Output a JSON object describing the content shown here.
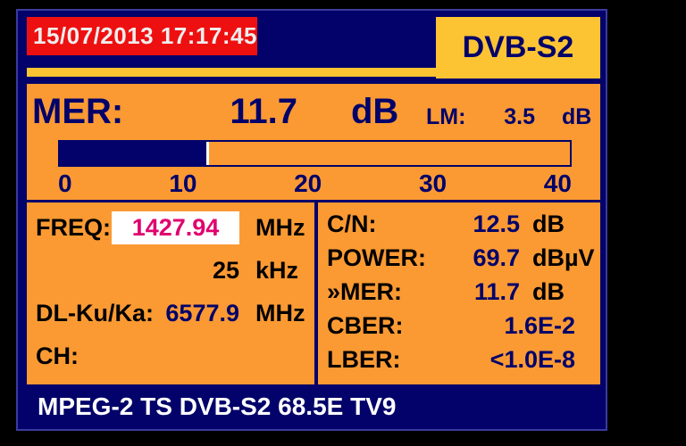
{
  "colors": {
    "navy": "#02026A",
    "frame": "#3A3A9E",
    "orange": "#FB9A33",
    "yellow": "#FCC433",
    "red": "#EE1010",
    "magenta": "#E0006E",
    "white": "#FFFFFF",
    "offwhite": "#EDEDED"
  },
  "header": {
    "datetime": "15/07/2013 17:17:45",
    "standard": "DVB-S2"
  },
  "mer": {
    "label": "MER:",
    "value": "11.7",
    "unit": "dB",
    "lm_label": "LM:",
    "lm_value": "3.5",
    "lm_unit": "dB"
  },
  "gauge": {
    "min": 0,
    "max": 40,
    "value": 11.7,
    "ticks": [
      "0",
      "10",
      "20",
      "30",
      "40"
    ]
  },
  "tuning": {
    "rows": [
      {
        "label": "FREQ:",
        "value": "1427.94",
        "unit": "MHz",
        "highlight": true
      },
      {
        "label": "",
        "value": "25",
        "unit": "kHz"
      },
      {
        "label": "DL-Ku/Ka:",
        "value": "6577.9",
        "unit": "MHz",
        "value_color": "navy"
      },
      {
        "label": "CH:",
        "value": "",
        "unit": ""
      }
    ]
  },
  "measurements": {
    "rows": [
      {
        "label": "C/N:",
        "value": "12.5",
        "unit": "dB"
      },
      {
        "label": "POWER:",
        "value": "69.7",
        "unit": "dBµV"
      },
      {
        "label": "»MER:",
        "value": "11.7",
        "unit": "dB"
      },
      {
        "label": "CBER:",
        "value": "1.6E-2",
        "unit": ""
      },
      {
        "label": "LBER:",
        "value": "<1.0E-8",
        "unit": ""
      }
    ]
  },
  "footer": {
    "text": "MPEG-2 TS DVB-S2 68.5E TV9"
  }
}
